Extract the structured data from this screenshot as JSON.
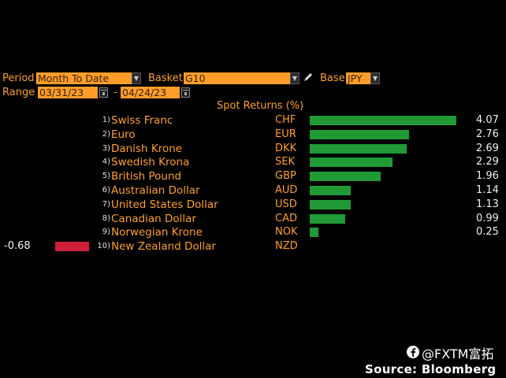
{
  "controls": {
    "period_label": "Period",
    "period_value": "Month To Date",
    "basket_label": "Basket",
    "basket_value": "G10",
    "base_label": "Base",
    "base_value": "JPY",
    "range_label": "Range",
    "range_start": "03/31/23",
    "range_sep": "-",
    "range_end": "04/24/23"
  },
  "icons": {
    "dropdown": "chevron-down-icon",
    "edit": "pencil-icon",
    "calendar": "calendar-icon",
    "brand": "facebook-icon"
  },
  "colors": {
    "positive_bar": "#1f9a35",
    "negative_bar": "#cf1e3a",
    "accent": "#ff9d2a"
  },
  "chart_data": {
    "type": "bar",
    "orientation": "horizontal",
    "title": "Spot Returns (%)",
    "rows": [
      {
        "rank": "1)",
        "name": "Swiss Franc",
        "code": "CHF",
        "value": 4.07,
        "label": "4.07"
      },
      {
        "rank": "2)",
        "name": "Euro",
        "code": "EUR",
        "value": 2.76,
        "label": "2.76"
      },
      {
        "rank": "3)",
        "name": "Danish Krone",
        "code": "DKK",
        "value": 2.69,
        "label": "2.69"
      },
      {
        "rank": "4)",
        "name": "Swedish Krona",
        "code": "SEK",
        "value": 2.29,
        "label": "2.29"
      },
      {
        "rank": "5)",
        "name": "British Pound",
        "code": "GBP",
        "value": 1.96,
        "label": "1.96"
      },
      {
        "rank": "6)",
        "name": "Australian Dollar",
        "code": "AUD",
        "value": 1.14,
        "label": "1.14"
      },
      {
        "rank": "7)",
        "name": "United States Dollar",
        "code": "USD",
        "value": 1.13,
        "label": "1.13"
      },
      {
        "rank": "8)",
        "name": "Canadian Dollar",
        "code": "CAD",
        "value": 0.99,
        "label": "0.99"
      },
      {
        "rank": "9)",
        "name": "Norwegian Krone",
        "code": "NOK",
        "value": 0.25,
        "label": "0.25"
      },
      {
        "rank": "10)",
        "name": "New Zealand Dollar",
        "code": "NZD",
        "value": -0.68,
        "label": "-0.68"
      }
    ]
  },
  "watermark": {
    "brand_text": "@FXTM富拓",
    "source_text": "Source: Bloomberg"
  }
}
